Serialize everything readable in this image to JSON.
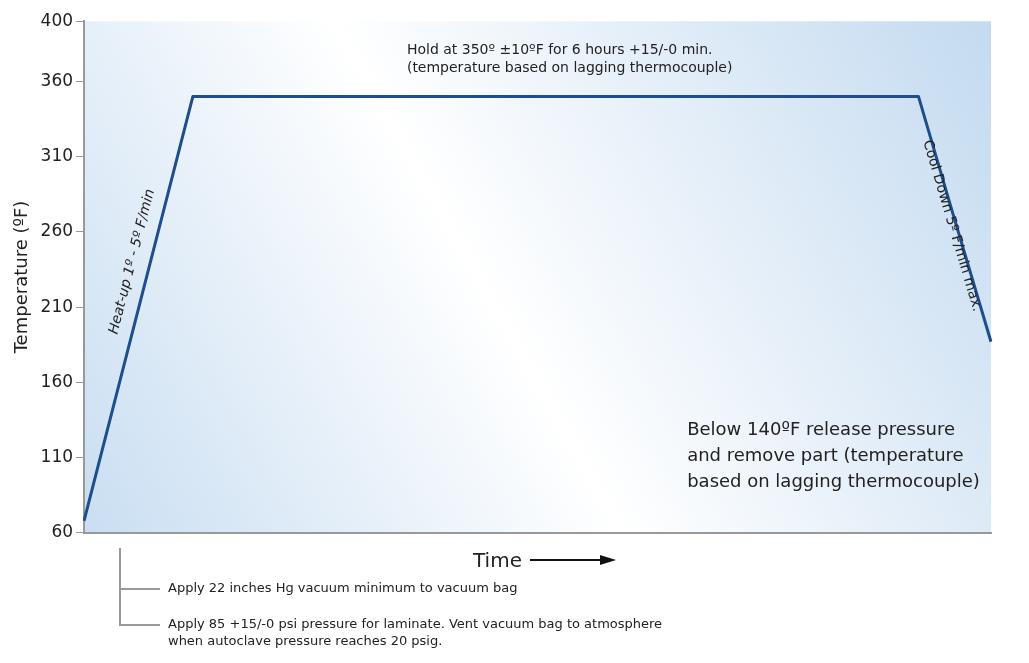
{
  "chart_data": {
    "type": "line",
    "ylabel": "Temperature (ºF)",
    "xlabel": "Time",
    "categories": [
      null,
      null,
      null,
      null,
      null,
      null,
      null,
      null,
      null,
      null,
      null,
      null,
      null,
      null,
      null,
      null,
      null,
      null,
      null,
      null,
      null,
      null,
      null,
      null,
      null,
      null
    ],
    "ylim": [
      60,
      400
    ],
    "yticks": [
      60,
      110,
      160,
      210,
      260,
      310,
      360,
      400
    ],
    "tick_labels": "y",
    "grid": false,
    "legend": false,
    "marker": "none",
    "line_style": "solid",
    "series": [
      {
        "color": "#1f4e8c",
        "values": [
          68,
          162,
          256,
          350,
          350,
          350,
          350,
          350,
          350,
          350,
          350,
          350,
          350,
          350,
          350,
          350,
          350,
          350,
          350,
          350,
          350,
          350,
          350,
          350,
          268,
          187
        ]
      }
    ],
    "annotations": [
      "Hold at 350º ±10ºF for 6 hours +15/-0 min.\n(temperature based on lagging thermocouple)",
      "Heat-up 1º - 5º F/min",
      "Cool Down 5º F/min max.",
      "Below 140ºF release pressure\nand remove part (temperature\nbased on lagging thermocouple)",
      "Apply 22 inches Hg vacuum minimum to vacuum bag",
      "Apply 85 +15/-0 psi pressure for laminate. Vent vacuum bag to atmosphere\nwhen autoclave pressure reaches 20 psig."
    ]
  }
}
